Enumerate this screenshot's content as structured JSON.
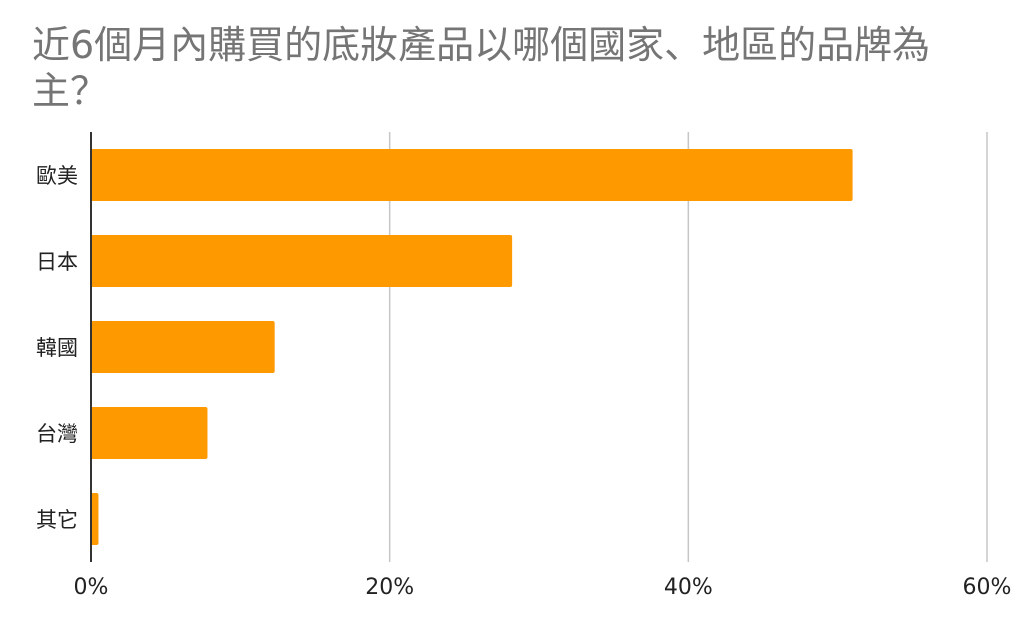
{
  "chart_data": {
    "type": "bar",
    "orientation": "horizontal",
    "title": "近6個月內購買的底妝產品以哪個國家、地區的品牌為主？",
    "categories": [
      "歐美",
      "日本",
      "韓國",
      "台灣",
      "其它"
    ],
    "values": [
      51.0,
      28.2,
      12.3,
      7.8,
      0.5
    ],
    "xlim": [
      0,
      60
    ],
    "xticks": [
      0,
      20,
      40,
      60
    ],
    "xtick_labels": [
      "0%",
      "20%",
      "40%",
      "60%"
    ],
    "grid": "vertical",
    "legend": "none",
    "bar_color": "#FF9900",
    "grid_color": "#C6C6C6",
    "axis_color": "#333333"
  }
}
